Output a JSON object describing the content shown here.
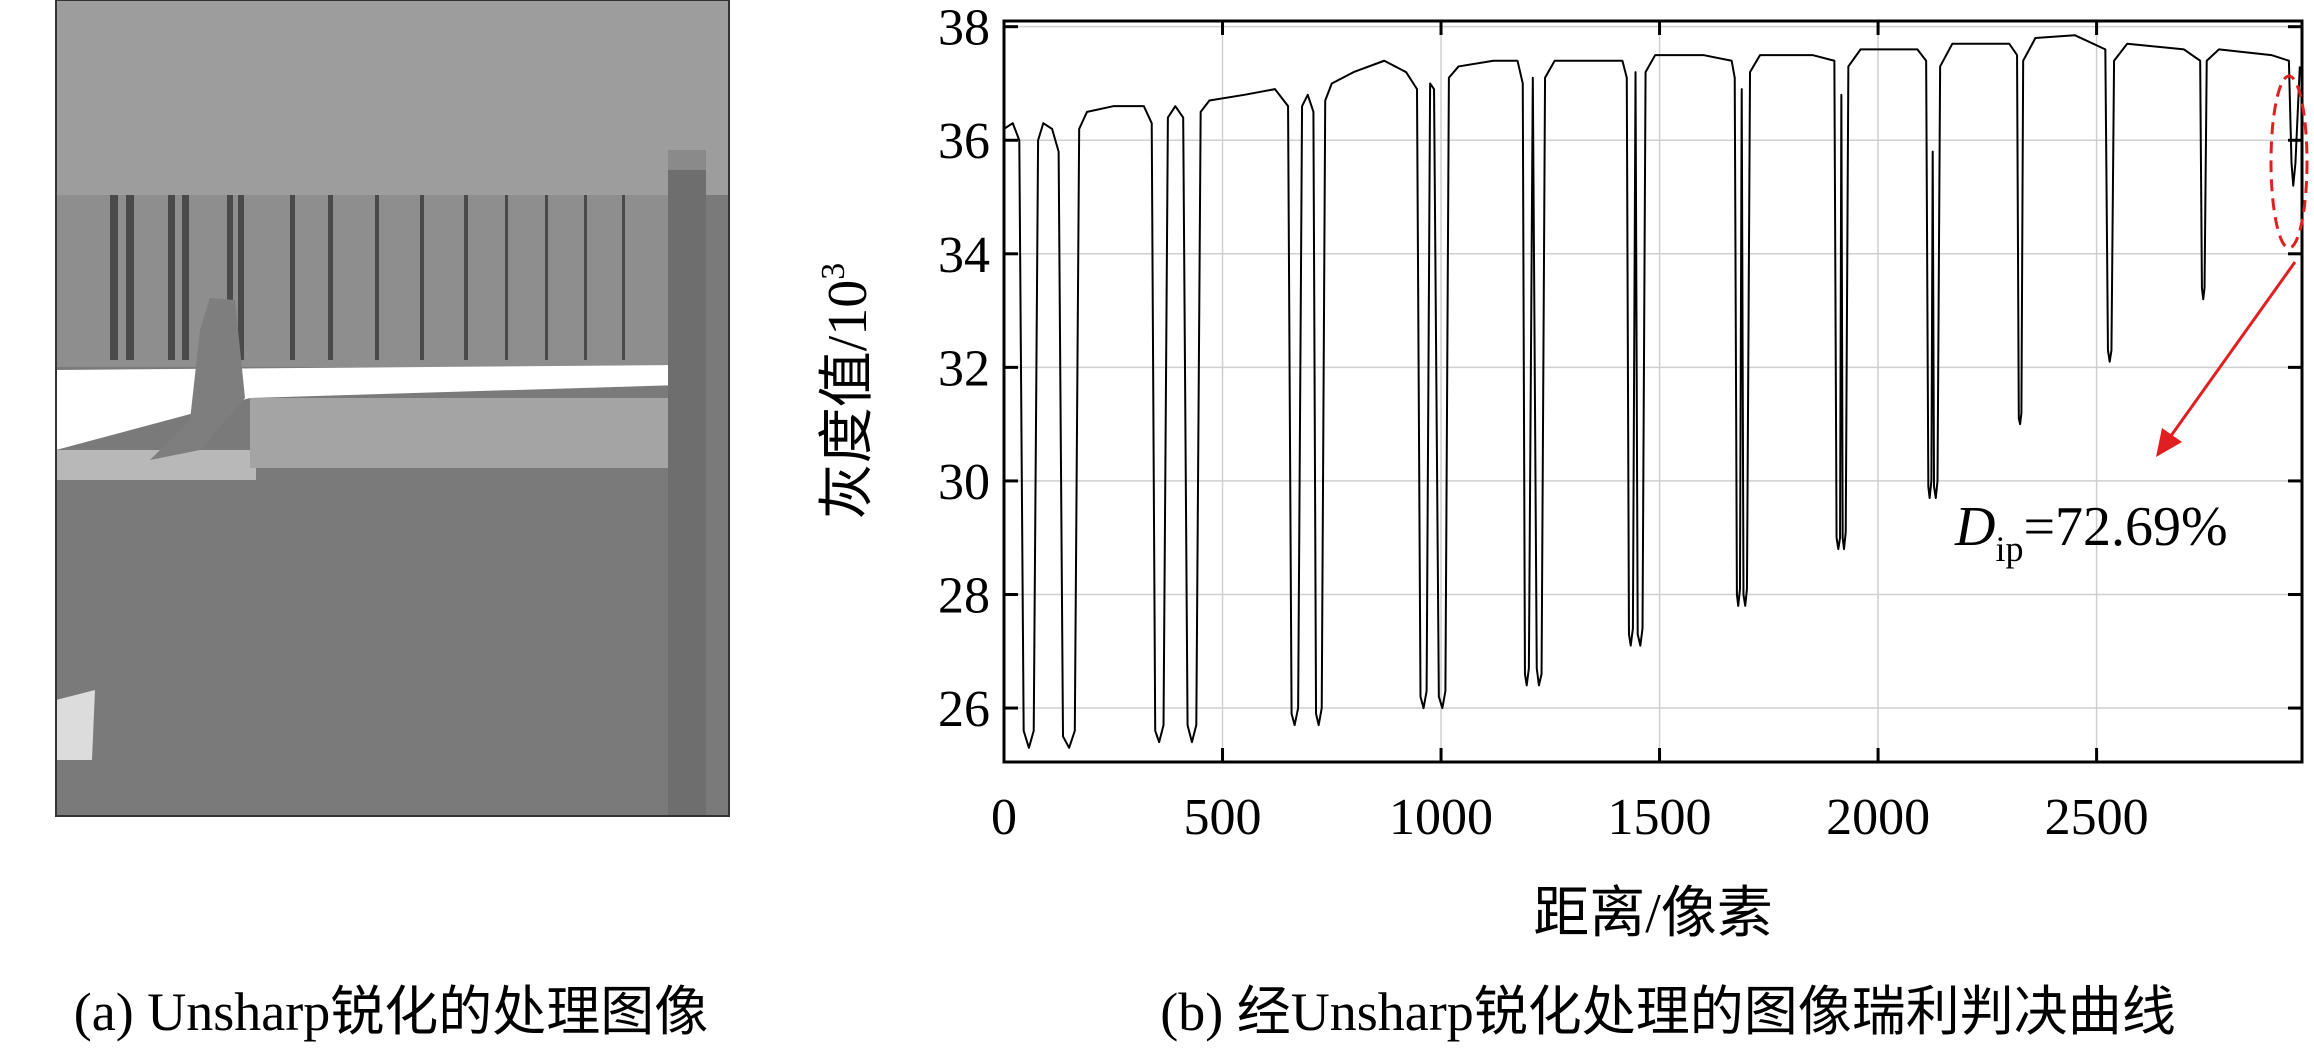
{
  "chart_data": {
    "type": "line",
    "xlabel": "距离/像素",
    "ylabel": {
      "text": "灰度值/10",
      "superscript": "3"
    },
    "annotation": {
      "symbol": "D",
      "subscript": "ip",
      "text": "=72.69%"
    },
    "color": "#000000",
    "grid": true,
    "xlim": [
      0,
      2970
    ],
    "xticks": [
      0,
      500,
      1000,
      1500,
      2000,
      2500
    ],
    "ylim": [
      25.05,
      38.1
    ],
    "yticks": [
      26,
      28,
      30,
      32,
      34,
      36,
      38
    ],
    "x": [
      0,
      20,
      35,
      45,
      57,
      68,
      78,
      90,
      110,
      125,
      135,
      149,
      162,
      172,
      190,
      250,
      320,
      338,
      346,
      355,
      365,
      375,
      392,
      410,
      420,
      430,
      440,
      450,
      470,
      550,
      620,
      650,
      658,
      665,
      673,
      682,
      695,
      708,
      714,
      720,
      727,
      735,
      750,
      800,
      870,
      920,
      945,
      953,
      960,
      967,
      975,
      984,
      995,
      1003,
      1010,
      1018,
      1040,
      1120,
      1175,
      1187,
      1192,
      1196,
      1201,
      1210,
      1219,
      1224,
      1230,
      1238,
      1260,
      1350,
      1415,
      1425,
      1430,
      1434,
      1439,
      1445,
      1450,
      1456,
      1461,
      1468,
      1490,
      1600,
      1665,
      1672,
      1677,
      1680,
      1684,
      1688,
      1692,
      1696,
      1700,
      1707,
      1730,
      1850,
      1900,
      1905,
      1909,
      1913,
      1916,
      1919,
      1922,
      1926,
      1932,
      1960,
      2090,
      2110,
      2115,
      2118,
      2122,
      2125,
      2128,
      2132,
      2136,
      2142,
      2170,
      2300,
      2318,
      2322,
      2325,
      2328,
      2332,
      2360,
      2450,
      2520,
      2526,
      2530,
      2534,
      2540,
      2570,
      2700,
      2737,
      2741,
      2744,
      2747,
      2752,
      2780,
      2900,
      2940,
      2946,
      2950,
      2955,
      2965
    ],
    "values": [
      36.2,
      36.3,
      36.0,
      25.6,
      25.3,
      25.6,
      36.0,
      36.3,
      36.2,
      35.8,
      25.5,
      25.3,
      25.6,
      36.2,
      36.5,
      36.6,
      36.6,
      36.3,
      25.6,
      25.4,
      25.7,
      36.4,
      36.6,
      36.4,
      25.7,
      25.4,
      25.7,
      36.5,
      36.7,
      36.8,
      36.9,
      36.6,
      25.9,
      25.7,
      26.0,
      36.6,
      36.8,
      36.5,
      25.9,
      25.7,
      26.0,
      36.7,
      37.0,
      37.2,
      37.4,
      37.2,
      36.9,
      26.2,
      26.0,
      26.3,
      37.0,
      36.9,
      26.2,
      26.0,
      26.3,
      37.1,
      37.3,
      37.4,
      37.4,
      37.0,
      26.6,
      26.4,
      26.7,
      37.1,
      26.7,
      26.4,
      26.6,
      37.1,
      37.4,
      37.4,
      37.4,
      37.1,
      27.3,
      27.1,
      27.4,
      37.2,
      27.3,
      27.1,
      27.4,
      37.2,
      37.5,
      37.5,
      37.4,
      37.1,
      28.0,
      27.8,
      28.1,
      36.9,
      28.0,
      27.8,
      28.1,
      37.2,
      37.5,
      37.5,
      37.4,
      29.0,
      28.8,
      29.0,
      36.8,
      29.0,
      28.8,
      29.1,
      37.3,
      37.6,
      37.6,
      37.4,
      29.9,
      29.7,
      30.0,
      35.8,
      29.9,
      29.7,
      30.0,
      37.3,
      37.7,
      37.7,
      37.5,
      31.1,
      31.0,
      31.2,
      37.4,
      37.8,
      37.85,
      37.6,
      32.3,
      32.1,
      32.3,
      37.4,
      37.7,
      37.6,
      37.4,
      33.4,
      33.2,
      33.4,
      37.4,
      37.6,
      37.5,
      37.4,
      35.6,
      35.2,
      35.6,
      37.3
    ]
  },
  "captions": [
    "(a) Unsharp锐化的处理图像",
    "(b) 经Unsharp锐化处理的图像瑞利判决曲线"
  ]
}
